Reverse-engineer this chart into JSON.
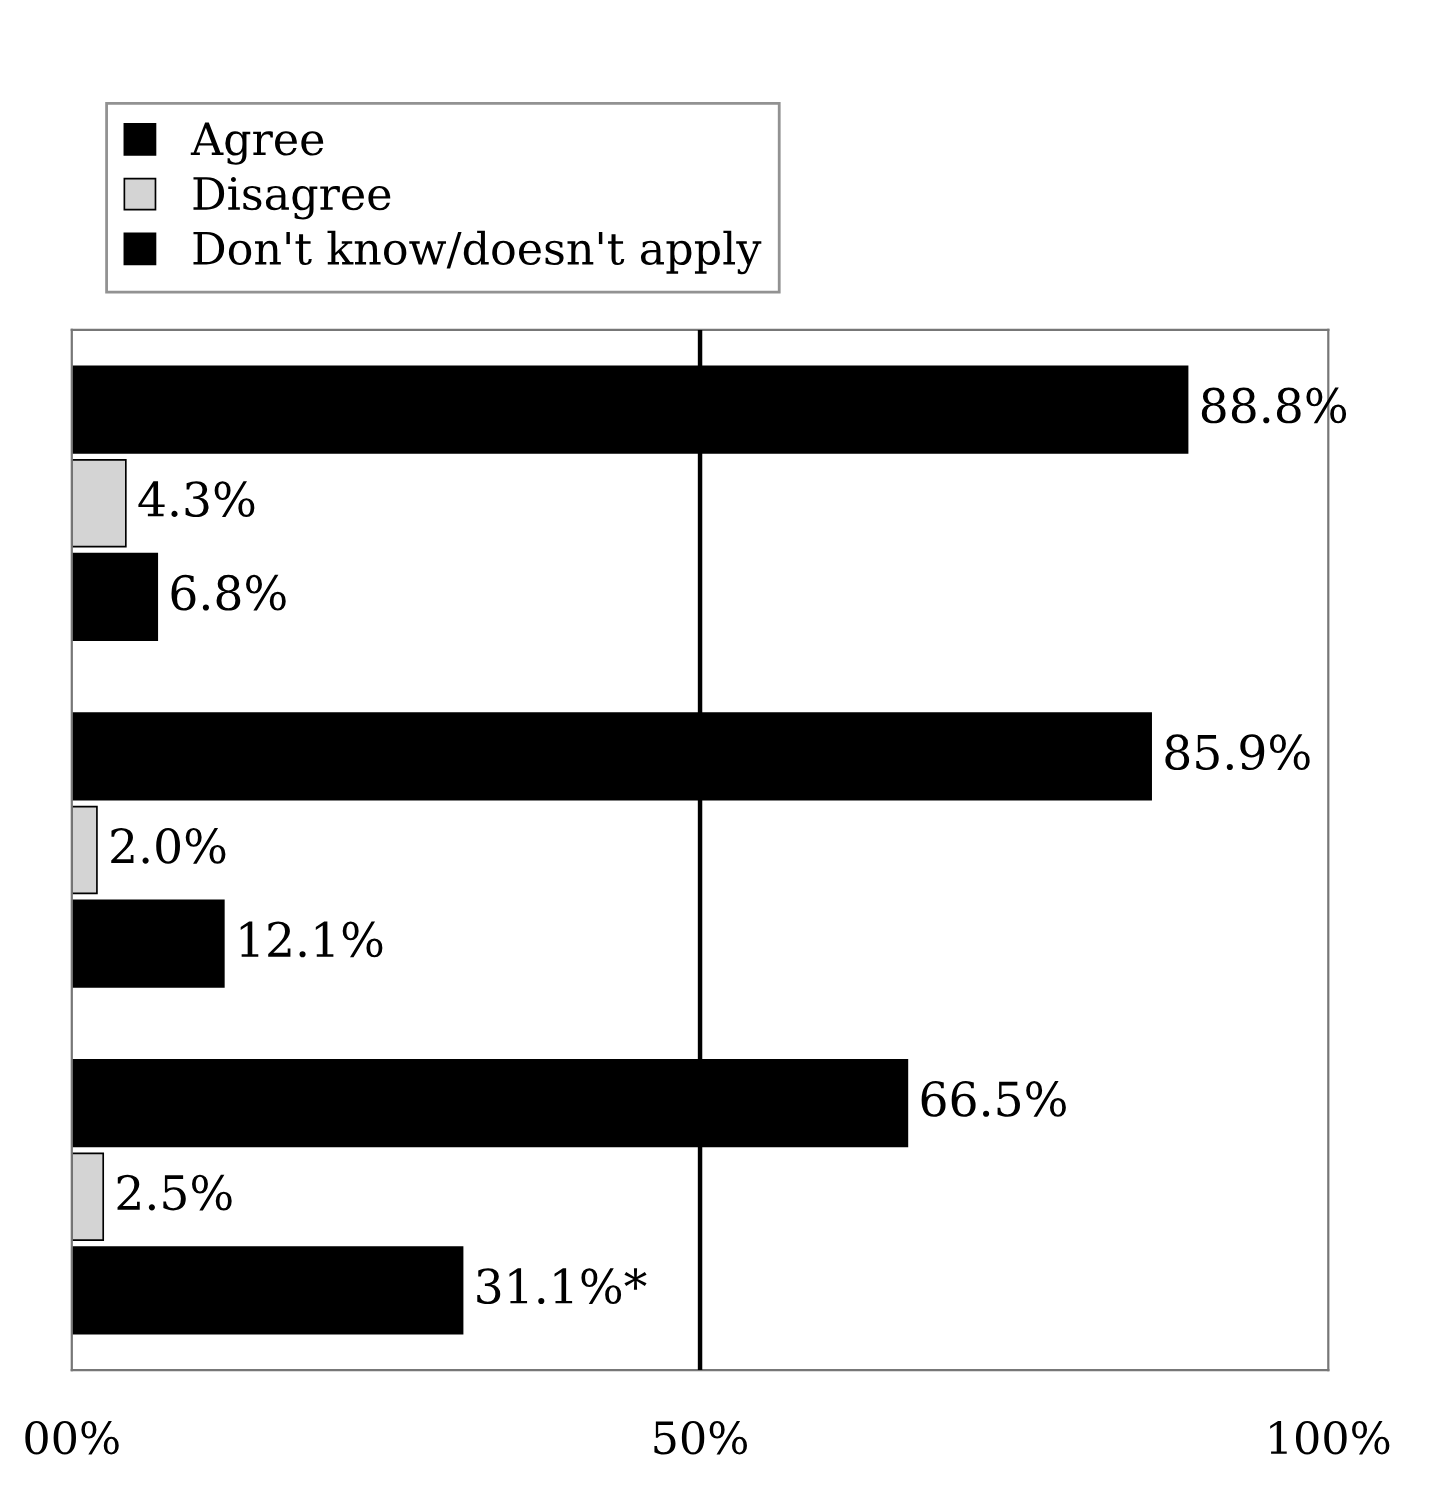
{
  "chart_data": {
    "type": "bar",
    "orientation": "horizontal",
    "categories": [
      null,
      null,
      null
    ],
    "series": [
      {
        "name": "Agree",
        "color": "#000000",
        "values": [
          88.8,
          85.9,
          66.5
        ],
        "value_labels": [
          "88.8%",
          "85.9%",
          "66.5%"
        ]
      },
      {
        "name": "Disagree",
        "color": "#d4d4d4",
        "values": [
          4.3,
          2.0,
          2.5
        ],
        "value_labels": [
          "4.3%",
          "2.0%",
          "2.5%"
        ]
      },
      {
        "name": "Don't know/doesn't apply",
        "color": "#000000",
        "values": [
          6.8,
          12.1,
          31.1
        ],
        "value_labels": [
          "6.8%",
          "12.1%",
          "31.1%*"
        ]
      }
    ],
    "xlim": [
      0,
      100
    ],
    "xticks": [
      {
        "value": 0,
        "label": "00%"
      },
      {
        "value": 50,
        "label": "50%"
      },
      {
        "value": 100,
        "label": "100%"
      }
    ],
    "ref_lines": [
      {
        "axis": "x",
        "value": 50,
        "color": "#000000"
      }
    ],
    "grid": false,
    "legend": "top left"
  }
}
